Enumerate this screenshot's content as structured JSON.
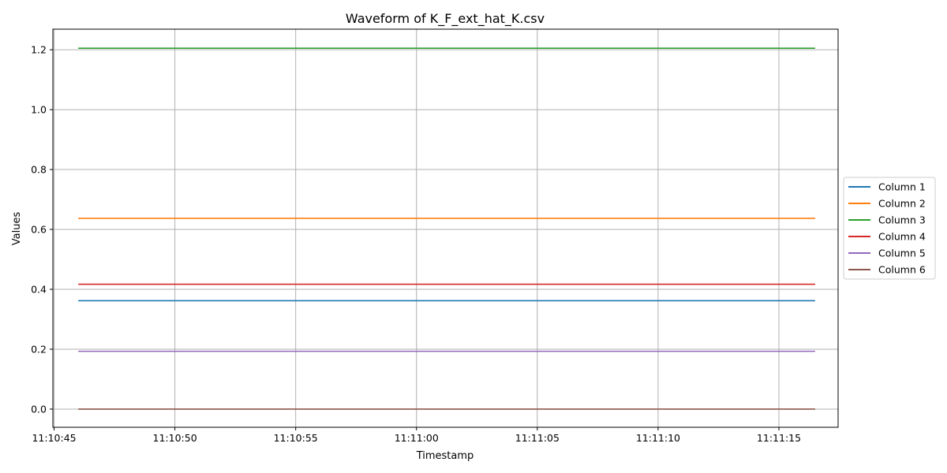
{
  "chart_data": {
    "type": "line",
    "title": "Waveform of K_F_ext_hat_K.csv",
    "xlabel": "Timestamp",
    "ylabel": "Values",
    "x_type": "time",
    "x": [
      "11:10:46",
      "11:11:16.5"
    ],
    "x_ticks": [
      "11:10:45",
      "11:10:50",
      "11:10:55",
      "11:11:00",
      "11:11:05",
      "11:11:10",
      "11:11:15"
    ],
    "xlim": [
      "11:10:44.95",
      "11:11:17.45"
    ],
    "ylim": [
      -0.0607,
      1.2687
    ],
    "y_ticks": [
      "0.0",
      "0.2",
      "0.4",
      "0.6",
      "0.8",
      "1.0",
      "1.2"
    ],
    "grid": true,
    "legend_position": "outside-right",
    "series": [
      {
        "name": "Column 1",
        "color": "#1f77b4",
        "values": [
          0.362,
          0.362
        ]
      },
      {
        "name": "Column 2",
        "color": "#ff7f0e",
        "values": [
          0.637,
          0.637
        ]
      },
      {
        "name": "Column 3",
        "color": "#2ca02c",
        "values": [
          1.205,
          1.205
        ]
      },
      {
        "name": "Column 4",
        "color": "#d62728",
        "values": [
          0.417,
          0.417
        ]
      },
      {
        "name": "Column 5",
        "color": "#9467bd",
        "values": [
          0.193,
          0.193
        ]
      },
      {
        "name": "Column 6",
        "color": "#8c564b",
        "values": [
          0.0,
          0.0
        ]
      }
    ]
  }
}
